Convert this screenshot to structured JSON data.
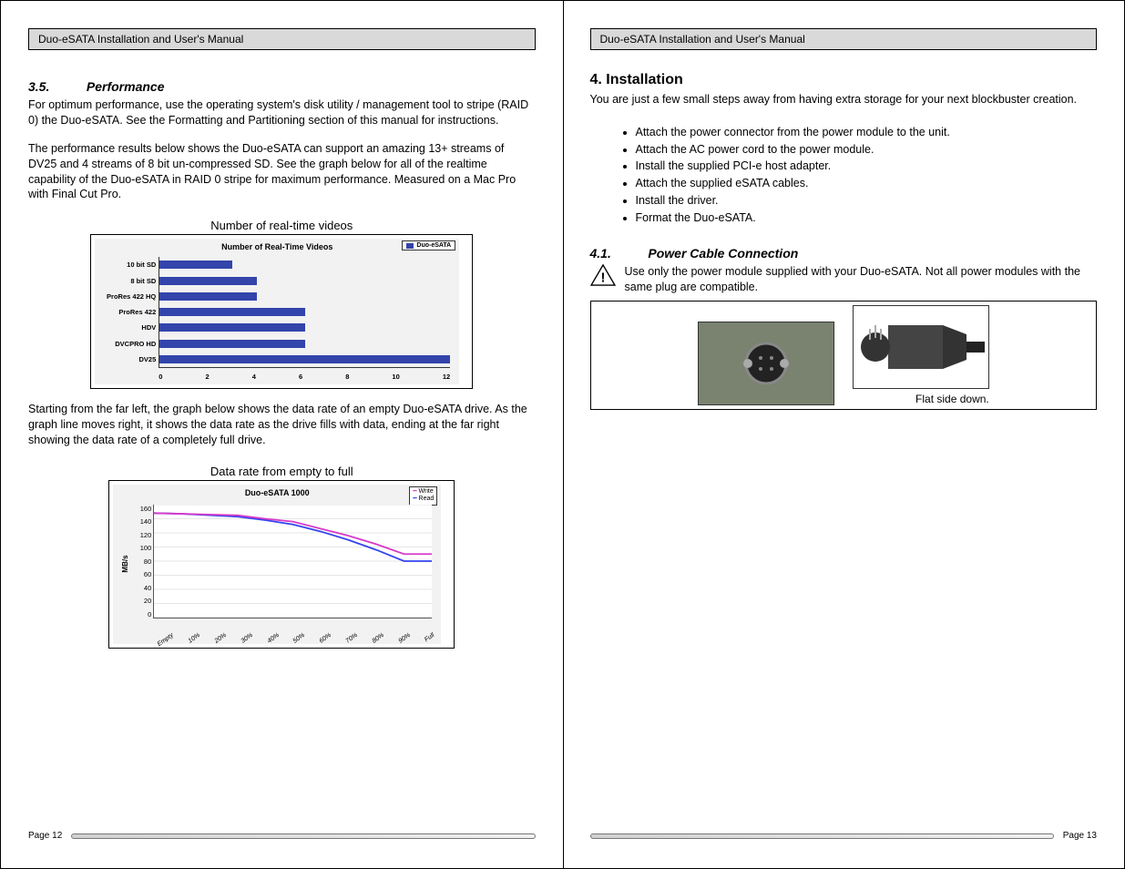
{
  "header_title": "Duo-eSATA Installation and User's Manual",
  "left": {
    "sec_num": "3.5.",
    "sec_title": "Performance",
    "p1": "For optimum performance, use the operating system's disk utility / management tool to stripe (RAID 0) the Duo-eSATA.  See the Formatting and Partitioning section of this manual for instructions.",
    "p2": "The performance results below shows the Duo-eSATA can support an amazing 13+ streams of DV25 and 4 streams of 8 bit un-compressed SD.  See the graph below for all of the realtime capability of the Duo-eSATA in RAID 0 stripe for maximum performance.  Measured on a Mac Pro with Final Cut Pro.",
    "chart1_caption": "Number of real-time videos",
    "chart1": {
      "title": "Number of Real-Time Videos",
      "legend": "Duo-eSATA",
      "bar_color": "#3344aa",
      "bg_color": "#f2f2f2",
      "xmax": 12,
      "xticks": [
        "0",
        "2",
        "4",
        "6",
        "8",
        "10",
        "12"
      ],
      "rows": [
        {
          "label": "10 bit SD",
          "value": 3
        },
        {
          "label": "8 bit SD",
          "value": 4
        },
        {
          "label": "ProRes 422 HQ",
          "value": 4
        },
        {
          "label": "ProRes 422",
          "value": 6
        },
        {
          "label": "HDV",
          "value": 6
        },
        {
          "label": "DVCPRO HD",
          "value": 6
        },
        {
          "label": "DV25",
          "value": 13
        }
      ]
    },
    "p3": "Starting from the far left, the graph below shows the data rate of an empty Duo-eSATA drive.  As the graph line moves right, it shows the data rate as the drive fills with data, ending at the far right showing the data rate of a completely full drive.",
    "chart2_caption": "Data rate from empty to full",
    "chart2": {
      "title": "Duo-eSATA 1000",
      "ylabel": "MB/s",
      "xlabels": [
        "Empty",
        "10%",
        "20%",
        "30%",
        "40%",
        "50%",
        "60%",
        "70%",
        "80%",
        "90%",
        "Full"
      ],
      "ymax": 160,
      "yticks": [
        "0",
        "20",
        "40",
        "60",
        "80",
        "100",
        "120",
        "140",
        "160"
      ],
      "legend_write": "Write",
      "legend_read": "Read",
      "write_color": "#d63ac9",
      "read_color": "#3344ee",
      "grid_color": "#cccccc",
      "bg_color": "#f2f2f2",
      "write_vals": [
        148,
        147,
        146,
        145,
        140,
        136,
        126,
        116,
        104,
        90,
        90
      ],
      "read_vals": [
        148,
        147,
        145,
        143,
        138,
        132,
        122,
        110,
        96,
        80,
        80
      ]
    },
    "page_label": "Page 12"
  },
  "right": {
    "h2": "4. Installation",
    "intro": "You are just a few small steps away from having extra storage for your next blockbuster creation.",
    "bullets": [
      "Attach the power connector from the power module to the unit.",
      "Attach the AC power cord to the power module.",
      "Install the supplied PCI-e host adapter.",
      "Attach the supplied eSATA cables.",
      "Install the driver.",
      "Format the Duo-eSATA."
    ],
    "sub_num": "4.1.",
    "sub_title": "Power Cable Connection",
    "warn_text": "Use only the power module supplied with your Duo-eSATA.  Not all power modules with the same plug are compatible.",
    "img_caption": "Flat side down.",
    "page_label": "Page 13"
  }
}
